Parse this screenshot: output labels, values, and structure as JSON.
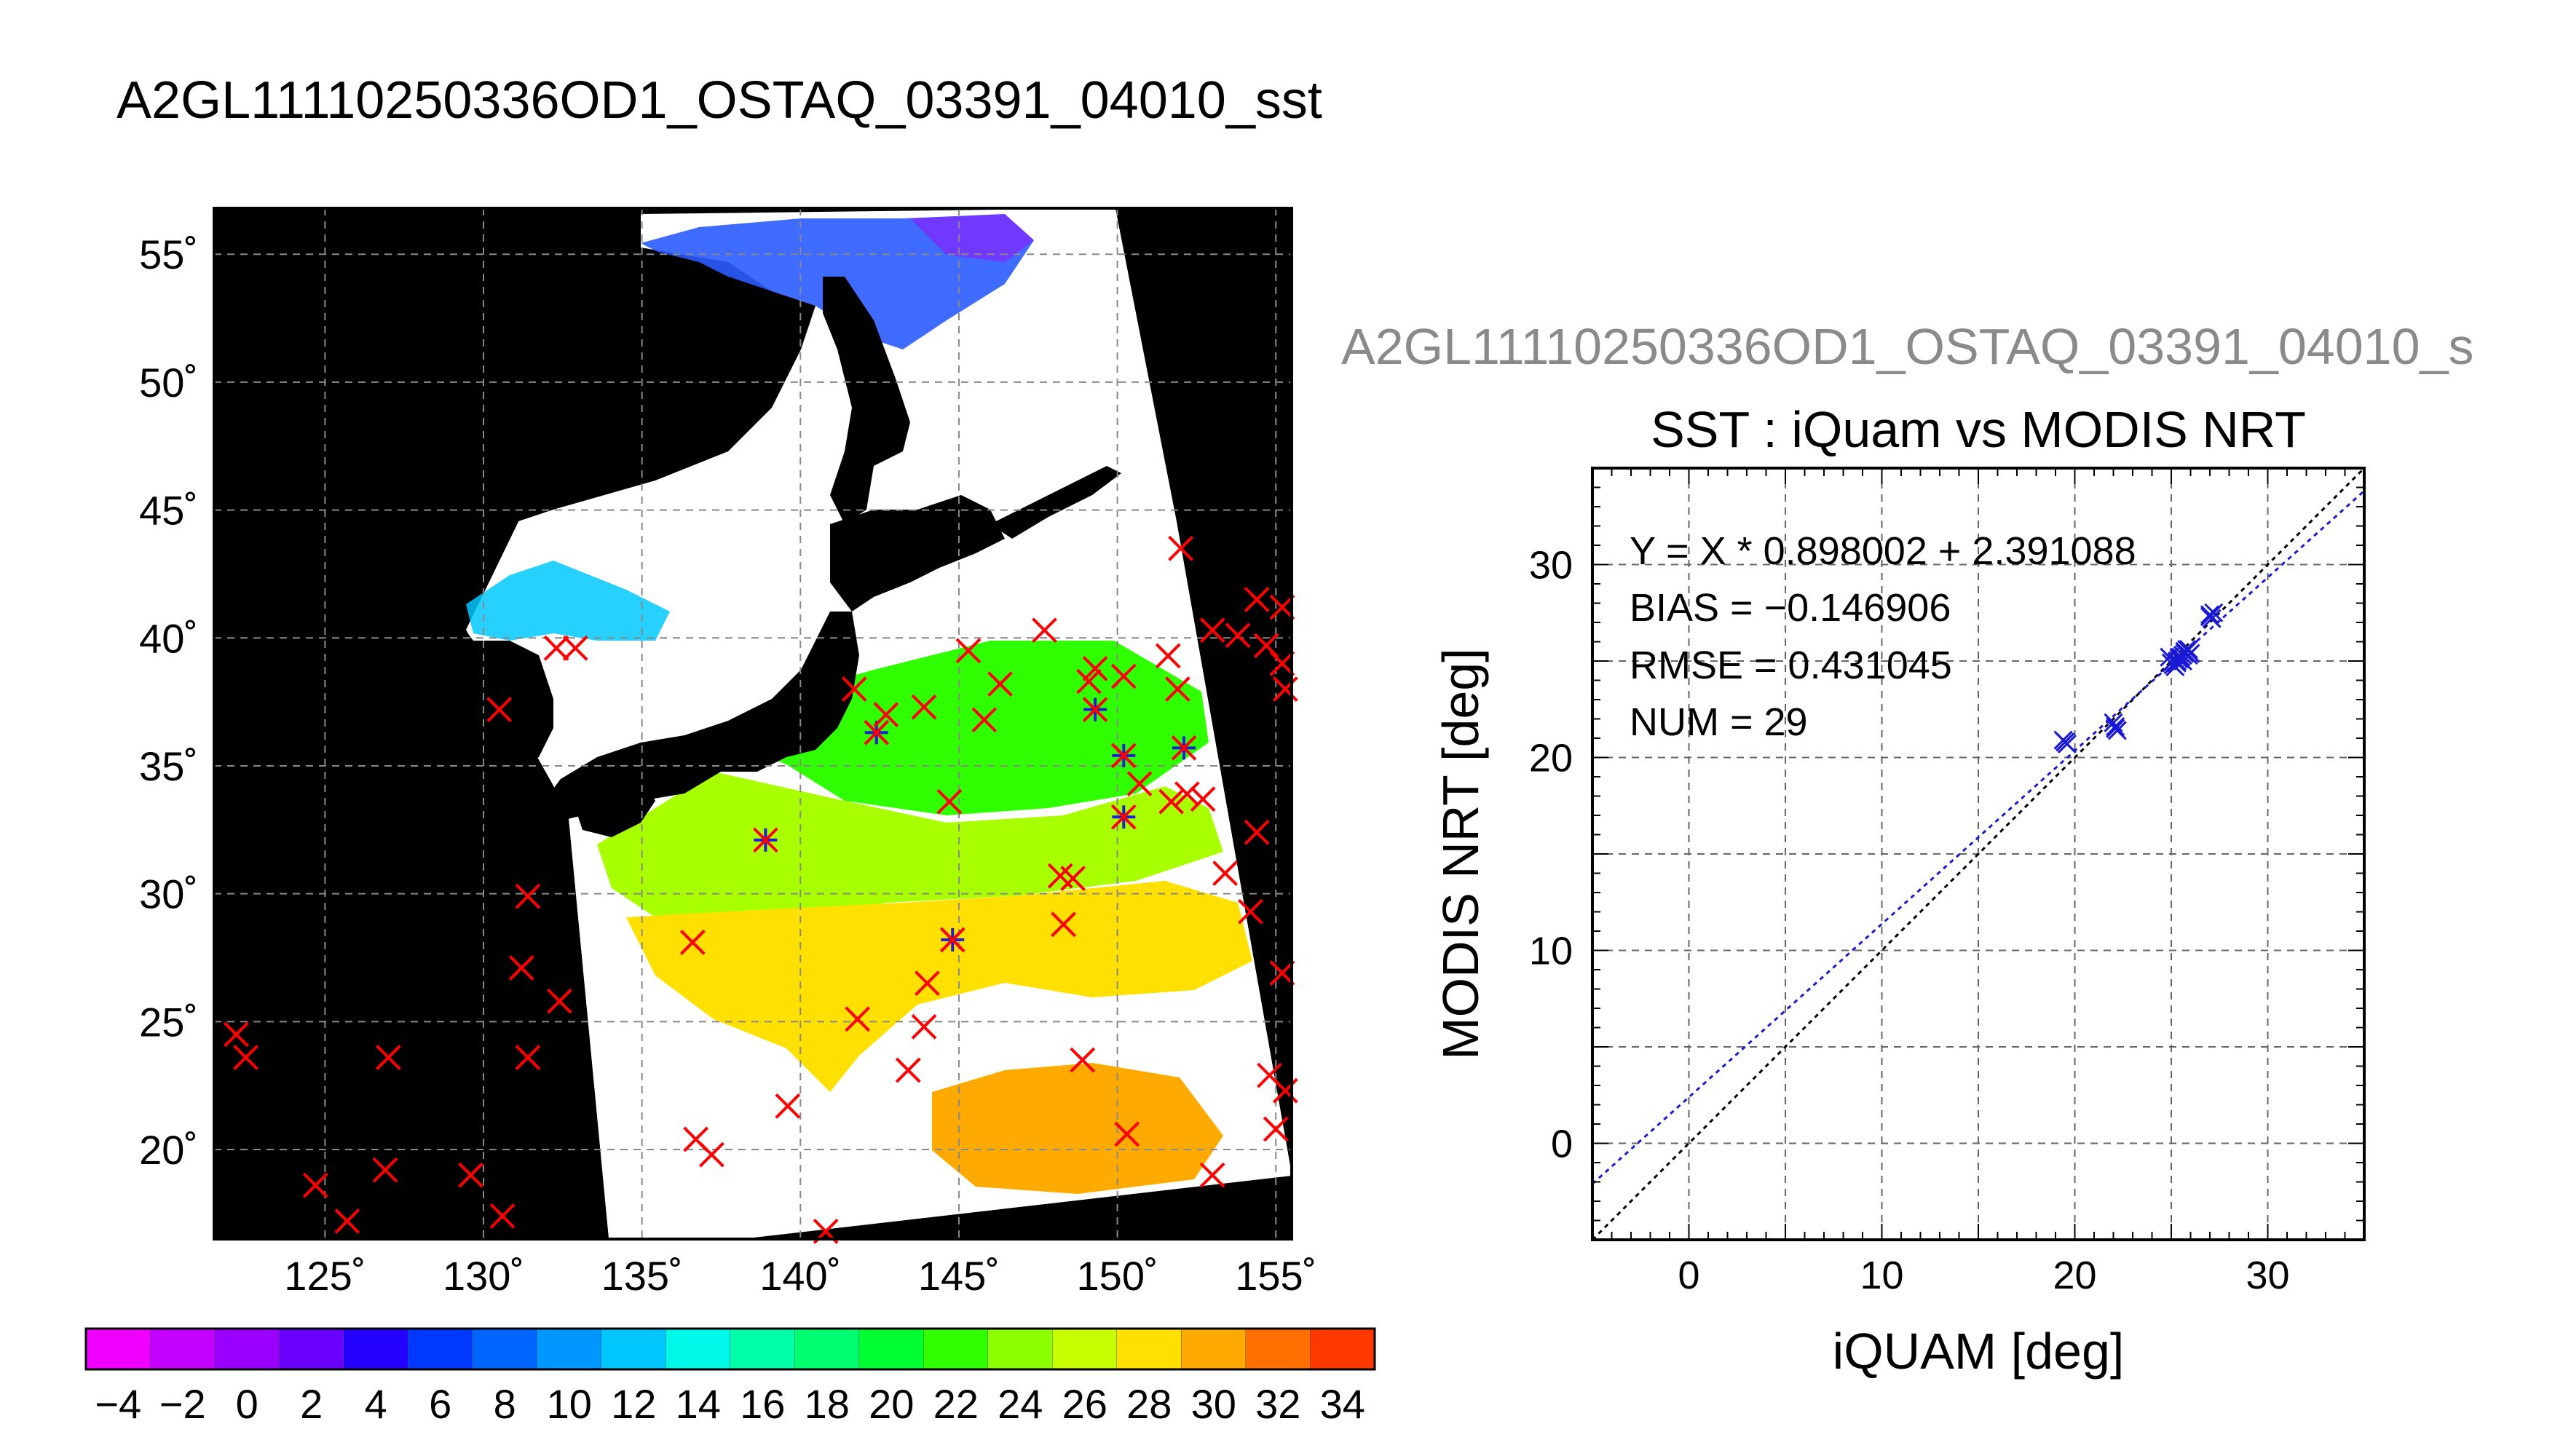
{
  "main_title": "A2GL11110250336OD1_OSTAQ_03391_04010_sst",
  "map": {
    "lat_labels": [
      "55˚",
      "50˚",
      "45˚",
      "40˚",
      "35˚",
      "30˚",
      "25˚",
      "20˚"
    ],
    "lon_labels": [
      "125˚",
      "130˚",
      "135˚",
      "140˚",
      "145˚",
      "150˚",
      "155˚"
    ],
    "lon_range": [
      121.5,
      155.5
    ],
    "lat_range": [
      16.5,
      56.8
    ],
    "matchups": [
      {
        "lon": 122.2,
        "lat": 24.5,
        "c": "red"
      },
      {
        "lon": 122.5,
        "lat": 23.6,
        "c": "red"
      },
      {
        "lon": 124.7,
        "lat": 18.6,
        "c": "red"
      },
      {
        "lon": 125.7,
        "lat": 17.2,
        "c": "red"
      },
      {
        "lon": 126.9,
        "lat": 19.2,
        "c": "red"
      },
      {
        "lon": 127.0,
        "lat": 23.6,
        "c": "red"
      },
      {
        "lon": 129.6,
        "lat": 19.0,
        "c": "red"
      },
      {
        "lon": 130.6,
        "lat": 17.4,
        "c": "red"
      },
      {
        "lon": 130.5,
        "lat": 37.2,
        "c": "red"
      },
      {
        "lon": 131.2,
        "lat": 27.1,
        "c": "red"
      },
      {
        "lon": 131.4,
        "lat": 29.9,
        "c": "red"
      },
      {
        "lon": 131.4,
        "lat": 23.6,
        "c": "red"
      },
      {
        "lon": 132.4,
        "lat": 25.8,
        "c": "red"
      },
      {
        "lon": 132.3,
        "lat": 39.6,
        "c": "red"
      },
      {
        "lon": 132.9,
        "lat": 39.6,
        "c": "red"
      },
      {
        "lon": 136.6,
        "lat": 28.1,
        "c": "red"
      },
      {
        "lon": 136.7,
        "lat": 20.4,
        "c": "red"
      },
      {
        "lon": 137.2,
        "lat": 19.8,
        "c": "red"
      },
      {
        "lon": 138.9,
        "lat": 32.1,
        "c": "both"
      },
      {
        "lon": 139.6,
        "lat": 21.7,
        "c": "red"
      },
      {
        "lon": 140.8,
        "lat": 16.8,
        "c": "red"
      },
      {
        "lon": 141.7,
        "lat": 38.0,
        "c": "red"
      },
      {
        "lon": 141.8,
        "lat": 25.1,
        "c": "red"
      },
      {
        "lon": 142.4,
        "lat": 36.3,
        "c": "both"
      },
      {
        "lon": 142.7,
        "lat": 37.0,
        "c": "red"
      },
      {
        "lon": 143.4,
        "lat": 23.1,
        "c": "red"
      },
      {
        "lon": 143.9,
        "lat": 24.8,
        "c": "red"
      },
      {
        "lon": 143.9,
        "lat": 37.3,
        "c": "red"
      },
      {
        "lon": 144.0,
        "lat": 26.5,
        "c": "red"
      },
      {
        "lon": 144.7,
        "lat": 33.6,
        "c": "red"
      },
      {
        "lon": 144.8,
        "lat": 28.2,
        "c": "both"
      },
      {
        "lon": 145.3,
        "lat": 39.5,
        "c": "red"
      },
      {
        "lon": 145.8,
        "lat": 36.8,
        "c": "red"
      },
      {
        "lon": 146.3,
        "lat": 38.2,
        "c": "red"
      },
      {
        "lon": 147.7,
        "lat": 40.3,
        "c": "red"
      },
      {
        "lon": 148.2,
        "lat": 30.7,
        "c": "red"
      },
      {
        "lon": 148.3,
        "lat": 28.8,
        "c": "red"
      },
      {
        "lon": 148.6,
        "lat": 30.6,
        "c": "red"
      },
      {
        "lon": 148.9,
        "lat": 23.5,
        "c": "red"
      },
      {
        "lon": 149.1,
        "lat": 38.3,
        "c": "red"
      },
      {
        "lon": 149.3,
        "lat": 38.8,
        "c": "red"
      },
      {
        "lon": 149.3,
        "lat": 37.2,
        "c": "both"
      },
      {
        "lon": 150.2,
        "lat": 38.5,
        "c": "red"
      },
      {
        "lon": 150.2,
        "lat": 35.4,
        "c": "both"
      },
      {
        "lon": 150.2,
        "lat": 33.0,
        "c": "both"
      },
      {
        "lon": 150.3,
        "lat": 20.6,
        "c": "red"
      },
      {
        "lon": 150.7,
        "lat": 34.3,
        "c": "red"
      },
      {
        "lon": 151.6,
        "lat": 39.3,
        "c": "red"
      },
      {
        "lon": 151.7,
        "lat": 33.6,
        "c": "red"
      },
      {
        "lon": 151.9,
        "lat": 38.0,
        "c": "red"
      },
      {
        "lon": 152.1,
        "lat": 35.7,
        "c": "both"
      },
      {
        "lon": 152.2,
        "lat": 33.9,
        "c": "red"
      },
      {
        "lon": 152.7,
        "lat": 33.7,
        "c": "red"
      },
      {
        "lon": 152.0,
        "lat": 43.5,
        "c": "red"
      },
      {
        "lon": 153.0,
        "lat": 40.3,
        "c": "red"
      },
      {
        "lon": 153.0,
        "lat": 19.0,
        "c": "red"
      },
      {
        "lon": 153.4,
        "lat": 30.8,
        "c": "red"
      },
      {
        "lon": 153.8,
        "lat": 40.1,
        "c": "red"
      },
      {
        "lon": 154.2,
        "lat": 29.3,
        "c": "red"
      },
      {
        "lon": 154.4,
        "lat": 32.4,
        "c": "red"
      },
      {
        "lon": 154.4,
        "lat": 41.5,
        "c": "red"
      },
      {
        "lon": 154.7,
        "lat": 39.7,
        "c": "red"
      },
      {
        "lon": 154.8,
        "lat": 22.9,
        "c": "red"
      },
      {
        "lon": 155.0,
        "lat": 20.8,
        "c": "red"
      },
      {
        "lon": 155.2,
        "lat": 41.2,
        "c": "red"
      },
      {
        "lon": 155.2,
        "lat": 39.0,
        "c": "red"
      },
      {
        "lon": 155.2,
        "lat": 26.9,
        "c": "red"
      },
      {
        "lon": 155.3,
        "lat": 22.3,
        "c": "red"
      },
      {
        "lon": 155.3,
        "lat": 38.0,
        "c": "red"
      }
    ]
  },
  "colorbar": {
    "range": [
      -5,
      35
    ],
    "step": 2,
    "tick_values": [
      -4,
      -2,
      0,
      2,
      4,
      6,
      8,
      10,
      12,
      14,
      16,
      18,
      20,
      22,
      24,
      26,
      28,
      30,
      32,
      34
    ],
    "tick_labels": [
      "−4",
      "−2",
      "0",
      "2",
      "4",
      "6",
      "8",
      "10",
      "12",
      "14",
      "16",
      "18",
      "20",
      "22",
      "24",
      "26",
      "28",
      "30",
      "32",
      "34"
    ],
    "colors": [
      "#f000ff",
      "#c400ff",
      "#9a00ff",
      "#6a00ff",
      "#2400ff",
      "#0038ff",
      "#0064ff",
      "#0096ff",
      "#00c8ff",
      "#00f8e8",
      "#00ffa8",
      "#00ff6e",
      "#00ff30",
      "#30ff00",
      "#8cff00",
      "#c8ff00",
      "#ffe000",
      "#ffaa00",
      "#ff7000",
      "#ff3800"
    ]
  },
  "scatter": {
    "file_title": "A2GL11110250336OD1_OSTAQ_03391_04010_s",
    "title": "SST : iQuam vs MODIS NRT",
    "annotations": [
      "Y = X * 0.898002 + 2.391088",
      "BIAS = −0.146906",
      "RMSE = 0.431045",
      "NUM = 29"
    ]
  },
  "chart_data": {
    "type": "scatter",
    "title": "SST : iQuam vs MODIS NRT",
    "xlabel": "iQUAM [deg]",
    "ylabel": "MODIS NRT [deg]",
    "xlim": [
      -5,
      35
    ],
    "ylim": [
      -5,
      35
    ],
    "xticks": [
      0,
      10,
      20,
      30
    ],
    "yticks": [
      0,
      10,
      20,
      30
    ],
    "grid": true,
    "series": [
      {
        "color": "#1a1ad6",
        "x": [
          19.4,
          19.6,
          22.0,
          22.2,
          24.9,
          25.1,
          25.3,
          25.5,
          25.7,
          25.9,
          26.0,
          27.0,
          27.1,
          19.5,
          22.1,
          25.2,
          25.6,
          25.4,
          25.8,
          27.2,
          25.0,
          25.3,
          25.6,
          25.9,
          22.1,
          19.5,
          25.4,
          25.7,
          27.0
        ],
        "y": [
          20.9,
          20.7,
          21.8,
          21.4,
          25.2,
          24.8,
          24.9,
          25.2,
          25.5,
          25.3,
          25.4,
          27.4,
          27.2,
          20.8,
          21.6,
          24.7,
          25.0,
          25.1,
          25.6,
          27.5,
          24.9,
          25.0,
          25.3,
          25.6,
          21.5,
          20.8,
          25.2,
          25.4,
          27.3
        ]
      }
    ],
    "lines": [
      {
        "label": "1:1",
        "slope": 1.0,
        "intercept": 0.0,
        "color": "#000000"
      },
      {
        "label": "fit",
        "slope": 0.898002,
        "intercept": 2.391088,
        "color": "#1a1ad6"
      }
    ]
  }
}
